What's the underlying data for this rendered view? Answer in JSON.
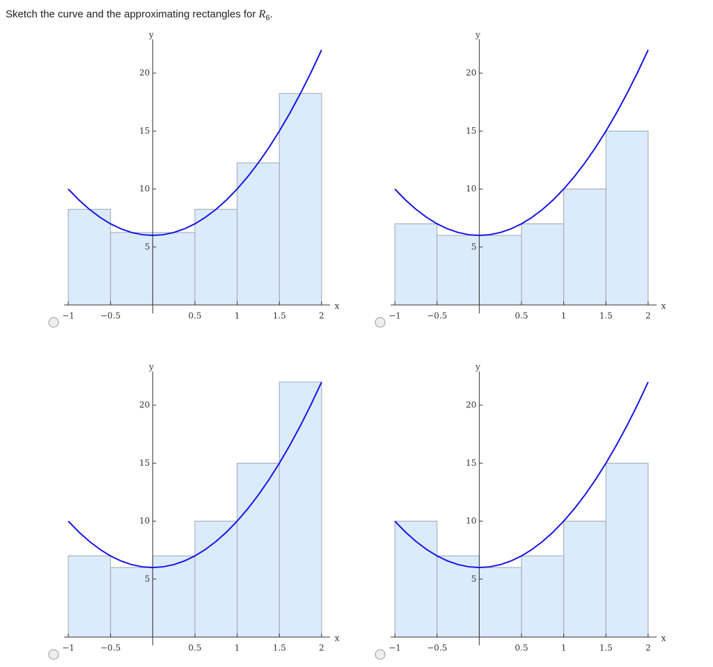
{
  "question": [
    "Sketch the curve and the approximating rectangles for ",
    "R",
    "6",
    "."
  ],
  "chart_data": [
    {
      "type": "histogram",
      "bins": [
        -1,
        -0.5,
        0,
        0.5,
        1,
        1.5,
        2
      ],
      "values": [
        8.25,
        6.25,
        6.25,
        8.25,
        12.25,
        18.25
      ],
      "color": "#dcebfc",
      "curve": {
        "x": [
          -1,
          -0.875,
          -0.75,
          -0.625,
          -0.5,
          -0.375,
          -0.25,
          -0.125,
          0,
          0.125,
          0.25,
          0.375,
          0.5,
          0.625,
          0.75,
          0.875,
          1,
          1.125,
          1.25,
          1.375,
          1.5,
          1.625,
          1.75,
          1.875,
          2
        ],
        "y": [
          10,
          9.0625,
          8.25,
          7.5625,
          7,
          6.5625,
          6.25,
          6.0625,
          6,
          6.0625,
          6.25,
          6.5625,
          7,
          7.5625,
          8.25,
          9.0625,
          10,
          11.0625,
          12.25,
          13.5625,
          15,
          16.5625,
          18.25,
          20.0625,
          22
        ],
        "color": "#1414e6"
      },
      "xlabel": "x",
      "ylabel": "y",
      "xlim": [
        -1.05,
        2.1
      ],
      "ylim": [
        0,
        22.8
      ],
      "xticks": [
        {
          "value": -1,
          "label": "−1"
        },
        {
          "value": -0.5,
          "label": "−0.5"
        },
        0.5,
        1,
        1.5,
        2
      ],
      "yticks": [
        5,
        10,
        15,
        20
      ]
    },
    {
      "type": "histogram",
      "bins": [
        -1,
        -0.5,
        0,
        0.5,
        1,
        1.5,
        2
      ],
      "values": [
        7,
        6,
        6,
        7,
        10,
        15
      ],
      "color": "#dcebfc",
      "curve": {
        "x": [
          -1,
          -0.875,
          -0.75,
          -0.625,
          -0.5,
          -0.375,
          -0.25,
          -0.125,
          0,
          0.125,
          0.25,
          0.375,
          0.5,
          0.625,
          0.75,
          0.875,
          1,
          1.125,
          1.25,
          1.375,
          1.5,
          1.625,
          1.75,
          1.875,
          2
        ],
        "y": [
          10,
          9.0625,
          8.25,
          7.5625,
          7,
          6.5625,
          6.25,
          6.0625,
          6,
          6.0625,
          6.25,
          6.5625,
          7,
          7.5625,
          8.25,
          9.0625,
          10,
          11.0625,
          12.25,
          13.5625,
          15,
          16.5625,
          18.25,
          20.0625,
          22
        ],
        "color": "#1414e6"
      },
      "xlabel": "x",
      "ylabel": "y",
      "xlim": [
        -1.05,
        2.1
      ],
      "ylim": [
        0,
        22.8
      ],
      "xticks": [
        {
          "value": -1,
          "label": "−1"
        },
        {
          "value": -0.5,
          "label": "−0.5"
        },
        0.5,
        1,
        1.5,
        2
      ],
      "yticks": [
        5,
        10,
        15,
        20
      ]
    },
    {
      "type": "histogram",
      "bins": [
        -1,
        -0.5,
        0,
        0.5,
        1,
        1.5,
        2
      ],
      "values": [
        7,
        6,
        7,
        10,
        15,
        22
      ],
      "color": "#dcebfc",
      "curve": {
        "x": [
          -1,
          -0.875,
          -0.75,
          -0.625,
          -0.5,
          -0.375,
          -0.25,
          -0.125,
          0,
          0.125,
          0.25,
          0.375,
          0.5,
          0.625,
          0.75,
          0.875,
          1,
          1.125,
          1.25,
          1.375,
          1.5,
          1.625,
          1.75,
          1.875,
          2
        ],
        "y": [
          10,
          9.0625,
          8.25,
          7.5625,
          7,
          6.5625,
          6.25,
          6.0625,
          6,
          6.0625,
          6.25,
          6.5625,
          7,
          7.5625,
          8.25,
          9.0625,
          10,
          11.0625,
          12.25,
          13.5625,
          15,
          16.5625,
          18.25,
          20.0625,
          22
        ],
        "color": "#1414e6"
      },
      "xlabel": "x",
      "ylabel": "y",
      "xlim": [
        -1.05,
        2.1
      ],
      "ylim": [
        0,
        22.8
      ],
      "xticks": [
        {
          "value": -1,
          "label": "−1"
        },
        {
          "value": -0.5,
          "label": "−0.5"
        },
        0.5,
        1,
        1.5,
        2
      ],
      "yticks": [
        5,
        10,
        15,
        20
      ]
    },
    {
      "type": "histogram",
      "bins": [
        -1,
        -0.5,
        0,
        0.5,
        1,
        1.5,
        2
      ],
      "values": [
        10,
        7,
        6,
        7,
        10,
        15
      ],
      "color": "#dcebfc",
      "curve": {
        "x": [
          -1,
          -0.875,
          -0.75,
          -0.625,
          -0.5,
          -0.375,
          -0.25,
          -0.125,
          0,
          0.125,
          0.25,
          0.375,
          0.5,
          0.625,
          0.75,
          0.875,
          1,
          1.125,
          1.25,
          1.375,
          1.5,
          1.625,
          1.75,
          1.875,
          2
        ],
        "y": [
          10,
          9.0625,
          8.25,
          7.5625,
          7,
          6.5625,
          6.25,
          6.0625,
          6,
          6.0625,
          6.25,
          6.5625,
          7,
          7.5625,
          8.25,
          9.0625,
          10,
          11.0625,
          12.25,
          13.5625,
          15,
          16.5625,
          18.25,
          20.0625,
          22
        ],
        "color": "#1414e6"
      },
      "xlabel": "x",
      "ylabel": "y",
      "xlim": [
        -1.05,
        2.1
      ],
      "ylim": [
        0,
        22.8
      ],
      "xticks": [
        {
          "value": -1,
          "label": "−1"
        },
        {
          "value": -0.5,
          "label": "−0.5"
        },
        0.5,
        1,
        1.5,
        2
      ],
      "yticks": [
        5,
        10,
        15,
        20
      ]
    }
  ]
}
